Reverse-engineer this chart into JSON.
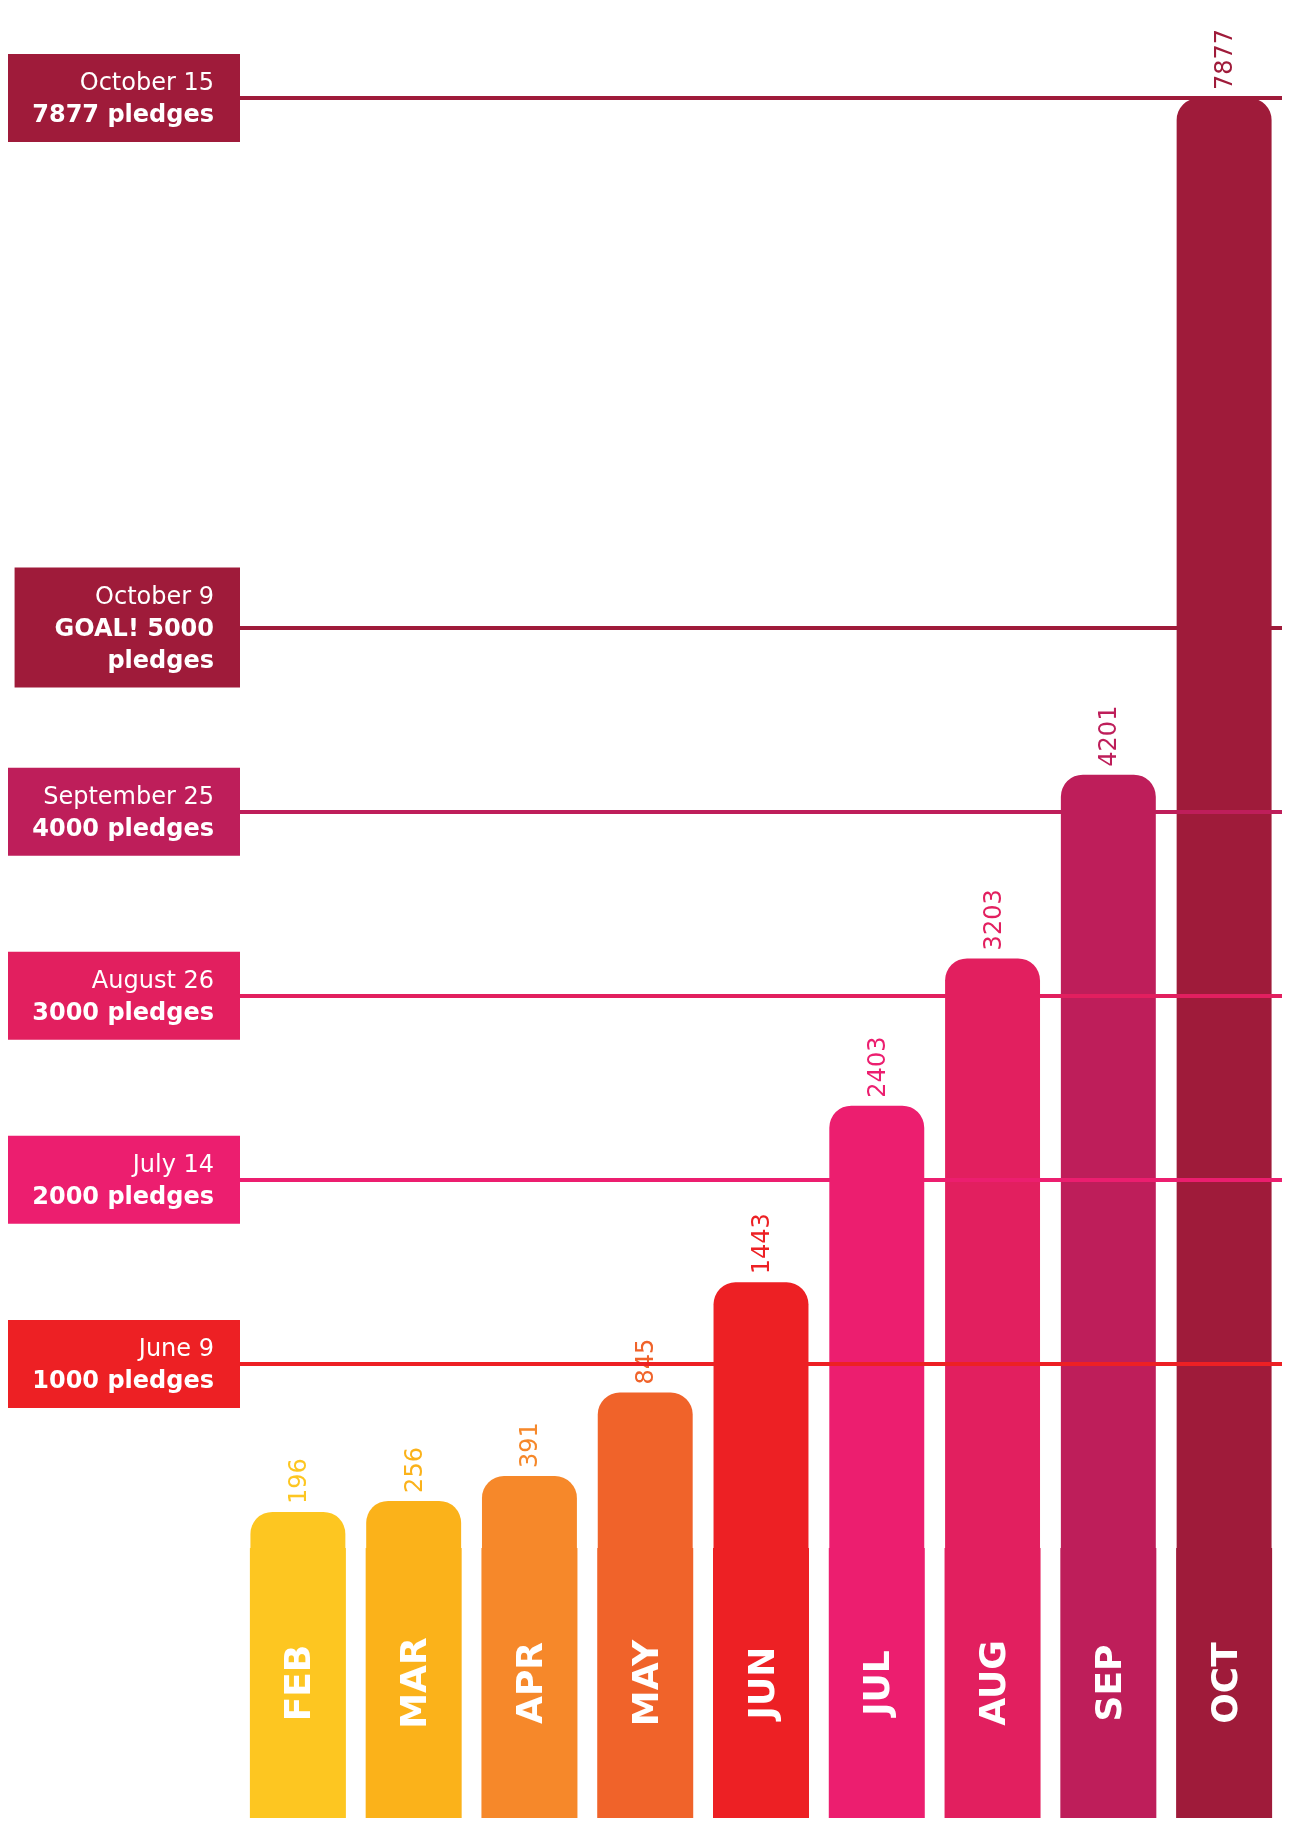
{
  "chart_data": {
    "type": "bar",
    "categories": [
      "FEB",
      "MAR",
      "APR",
      "MAY",
      "JUN",
      "JUL",
      "AUG",
      "SEP",
      "OCT"
    ],
    "values": [
      196,
      256,
      391,
      845,
      1443,
      2403,
      3203,
      4201,
      7877
    ],
    "colors": [
      "#fdc621",
      "#fbb21a",
      "#f6882a",
      "#f0632a",
      "#ed2024",
      "#ec1e6f",
      "#e21f5f",
      "#be1e5a",
      "#9f1b3a"
    ],
    "data_labels": true,
    "tick_labels": "x",
    "ref_lines": [
      {
        "axis": "y",
        "value": 1000,
        "label": "June 9\n1000 pledges",
        "color": "#ed2024"
      },
      {
        "axis": "y",
        "value": 2000,
        "label": "July 14\n2000 pledges",
        "color": "#ec1e6f"
      },
      {
        "axis": "y",
        "value": 3000,
        "label": "August 26\n3000 pledges",
        "color": "#e21f5f"
      },
      {
        "axis": "y",
        "value": 4000,
        "label": "September 25\n4000 pledges",
        "color": "#be1e5a"
      },
      {
        "axis": "y",
        "value": 5000,
        "label": "October 9\nGOAL! 5000\npledges",
        "color": "#9f1b3a"
      },
      {
        "axis": "y",
        "value": 7877,
        "label": "October 15\n7877 pledges",
        "color": "#9f1b3a"
      }
    ]
  }
}
